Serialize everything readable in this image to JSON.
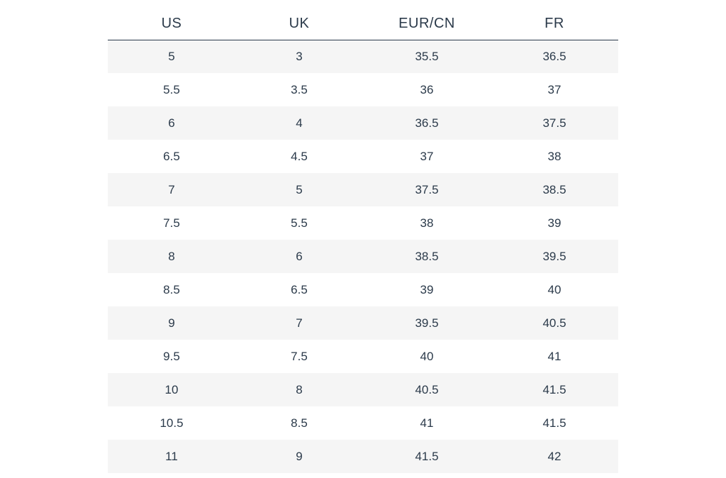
{
  "size_table": {
    "type": "table",
    "columns": [
      "US",
      "UK",
      "EUR/CN",
      "FR"
    ],
    "rows": [
      [
        "5",
        "3",
        "35.5",
        "36.5"
      ],
      [
        "5.5",
        "3.5",
        "36",
        "37"
      ],
      [
        "6",
        "4",
        "36.5",
        "37.5"
      ],
      [
        "6.5",
        "4.5",
        "37",
        "38"
      ],
      [
        "7",
        "5",
        "37.5",
        "38.5"
      ],
      [
        "7.5",
        "5.5",
        "38",
        "39"
      ],
      [
        "8",
        "6",
        "38.5",
        "39.5"
      ],
      [
        "8.5",
        "6.5",
        "39",
        "40"
      ],
      [
        "9",
        "7",
        "39.5",
        "40.5"
      ],
      [
        "9.5",
        "7.5",
        "40",
        "41"
      ],
      [
        "10",
        "8",
        "40.5",
        "41.5"
      ],
      [
        "10.5",
        "8.5",
        "41",
        "41.5"
      ],
      [
        "11",
        "9",
        "41.5",
        "42"
      ]
    ],
    "text_color": "#2b3a4a",
    "header_border_color": "#2b3a4a",
    "row_odd_bg": "#f5f5f5",
    "row_even_bg": "#ffffff",
    "background_color": "#ffffff",
    "header_fontsize": 20,
    "cell_fontsize": 17,
    "col_count": 4
  }
}
